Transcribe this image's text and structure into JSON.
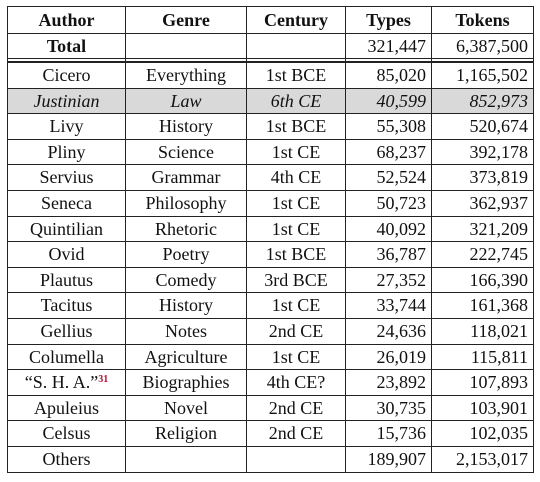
{
  "headers": [
    "Author",
    "Genre",
    "Century",
    "Types",
    "Tokens"
  ],
  "total": {
    "label": "Total",
    "types": "321,447",
    "tokens": "6,387,500"
  },
  "rows": [
    {
      "author": "Cicero",
      "genre": "Everything",
      "century": "1st BCE",
      "types": "85,020",
      "tokens": "1,165,502"
    },
    {
      "author": "Justinian",
      "genre": "Law",
      "century": "6th CE",
      "types": "40,599",
      "tokens": "852,973",
      "highlighted": true
    },
    {
      "author": "Livy",
      "genre": "History",
      "century": "1st BCE",
      "types": "55,308",
      "tokens": "520,674"
    },
    {
      "author": "Pliny",
      "genre": "Science",
      "century": "1st CE",
      "types": "68,237",
      "tokens": "392,178"
    },
    {
      "author": "Servius",
      "genre": "Grammar",
      "century": "4th CE",
      "types": "52,524",
      "tokens": "373,819"
    },
    {
      "author": "Seneca",
      "genre": "Philosophy",
      "century": "1st CE",
      "types": "50,723",
      "tokens": "362,937"
    },
    {
      "author": "Quintilian",
      "genre": "Rhetoric",
      "century": "1st CE",
      "types": "40,092",
      "tokens": "321,209"
    },
    {
      "author": "Ovid",
      "genre": "Poetry",
      "century": "1st BCE",
      "types": "36,787",
      "tokens": "222,745"
    },
    {
      "author": "Plautus",
      "genre": "Comedy",
      "century": "3rd BCE",
      "types": "27,352",
      "tokens": "166,390"
    },
    {
      "author": "Tacitus",
      "genre": "History",
      "century": "1st CE",
      "types": "33,744",
      "tokens": "161,368"
    },
    {
      "author": "Gellius",
      "genre": "Notes",
      "century": "2nd CE",
      "types": "24,636",
      "tokens": "118,021"
    },
    {
      "author": "Columella",
      "genre": "Agriculture",
      "century": "1st CE",
      "types": "26,019",
      "tokens": "115,811"
    },
    {
      "author": "“S. H. A.”",
      "footnote": "31",
      "genre": "Biographies",
      "century": "4th CE?",
      "types": "23,892",
      "tokens": "107,893"
    },
    {
      "author": "Apuleius",
      "genre": "Novel",
      "century": "2nd CE",
      "types": "30,735",
      "tokens": "103,901"
    },
    {
      "author": "Celsus",
      "genre": "Religion",
      "century": "2nd CE",
      "types": "15,736",
      "tokens": "102,035"
    },
    {
      "author": "Others",
      "genre": "",
      "century": "",
      "types": "189,907",
      "tokens": "2,153,017"
    }
  ]
}
